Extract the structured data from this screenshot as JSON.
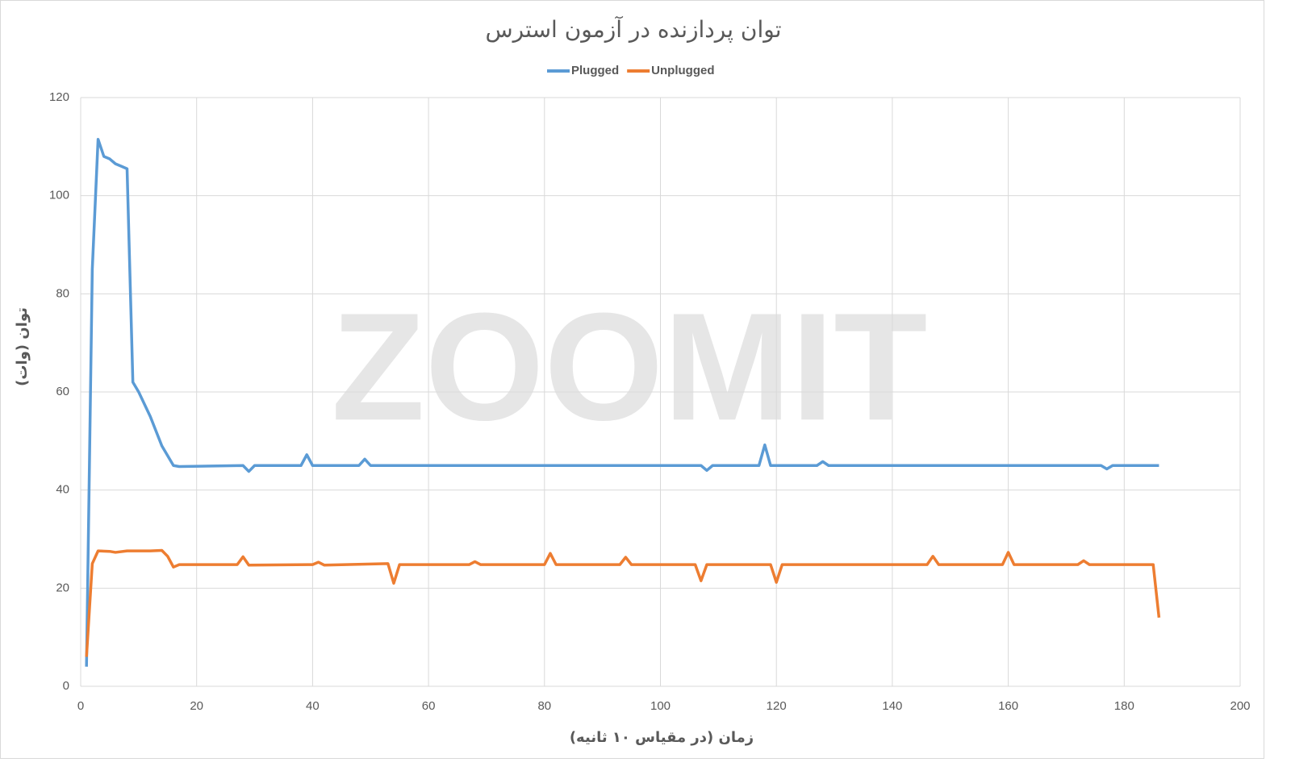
{
  "chart_data": {
    "type": "line",
    "title": "توان پردازنده در آزمون استرس",
    "x_label": "زمان (در مقیاس ۱۰ ثانیه)",
    "y_label": "توان (وات)",
    "watermark": "ZOOMIT",
    "xlim": [
      0,
      200
    ],
    "xticks": [
      0,
      20,
      40,
      60,
      80,
      100,
      120,
      140,
      160,
      180,
      200
    ],
    "ylim": [
      0,
      120
    ],
    "yticks": [
      0,
      20,
      40,
      60,
      80,
      100,
      120
    ],
    "grid": true,
    "legend": "top",
    "series": [
      {
        "name": "Plugged",
        "color": "#5b9bd5",
        "x": [
          1,
          2,
          3,
          4,
          5,
          6,
          7,
          8,
          9,
          10,
          12,
          14,
          16,
          17,
          28,
          29,
          30,
          38,
          39,
          40,
          48,
          49,
          50,
          107,
          108,
          109,
          117,
          118,
          119,
          127,
          128,
          129,
          176,
          177,
          178,
          186
        ],
        "values": [
          4,
          85,
          111.5,
          108,
          107.5,
          106.5,
          106,
          105.5,
          62,
          60,
          55,
          49,
          45,
          44.8,
          45,
          43.8,
          45,
          45,
          47.2,
          45,
          45,
          46.3,
          45,
          45,
          44,
          45,
          45,
          49.2,
          45,
          45,
          45.8,
          45,
          45,
          44.3,
          45,
          45
        ]
      },
      {
        "name": "Unplugged",
        "color": "#ed7d31",
        "x": [
          1,
          2,
          3,
          5,
          6,
          8,
          12,
          14,
          15,
          16,
          17,
          27,
          28,
          29,
          40,
          41,
          42,
          53,
          54,
          55,
          67,
          68,
          69,
          80,
          81,
          82,
          93,
          94,
          95,
          106,
          107,
          108,
          119,
          120,
          121,
          146,
          147,
          148,
          159,
          160,
          161,
          172,
          173,
          174,
          185,
          186
        ],
        "values": [
          6,
          25,
          27.6,
          27.5,
          27.3,
          27.6,
          27.6,
          27.7,
          26.5,
          24.3,
          24.8,
          24.8,
          26.4,
          24.7,
          24.8,
          25.3,
          24.7,
          25,
          21,
          24.8,
          24.8,
          25.4,
          24.8,
          24.8,
          27.1,
          24.8,
          24.8,
          26.3,
          24.8,
          24.8,
          21.5,
          24.8,
          24.8,
          21.2,
          24.8,
          24.8,
          26.5,
          24.8,
          24.8,
          27.3,
          24.8,
          24.8,
          25.6,
          24.8,
          24.8,
          14
        ]
      }
    ]
  }
}
